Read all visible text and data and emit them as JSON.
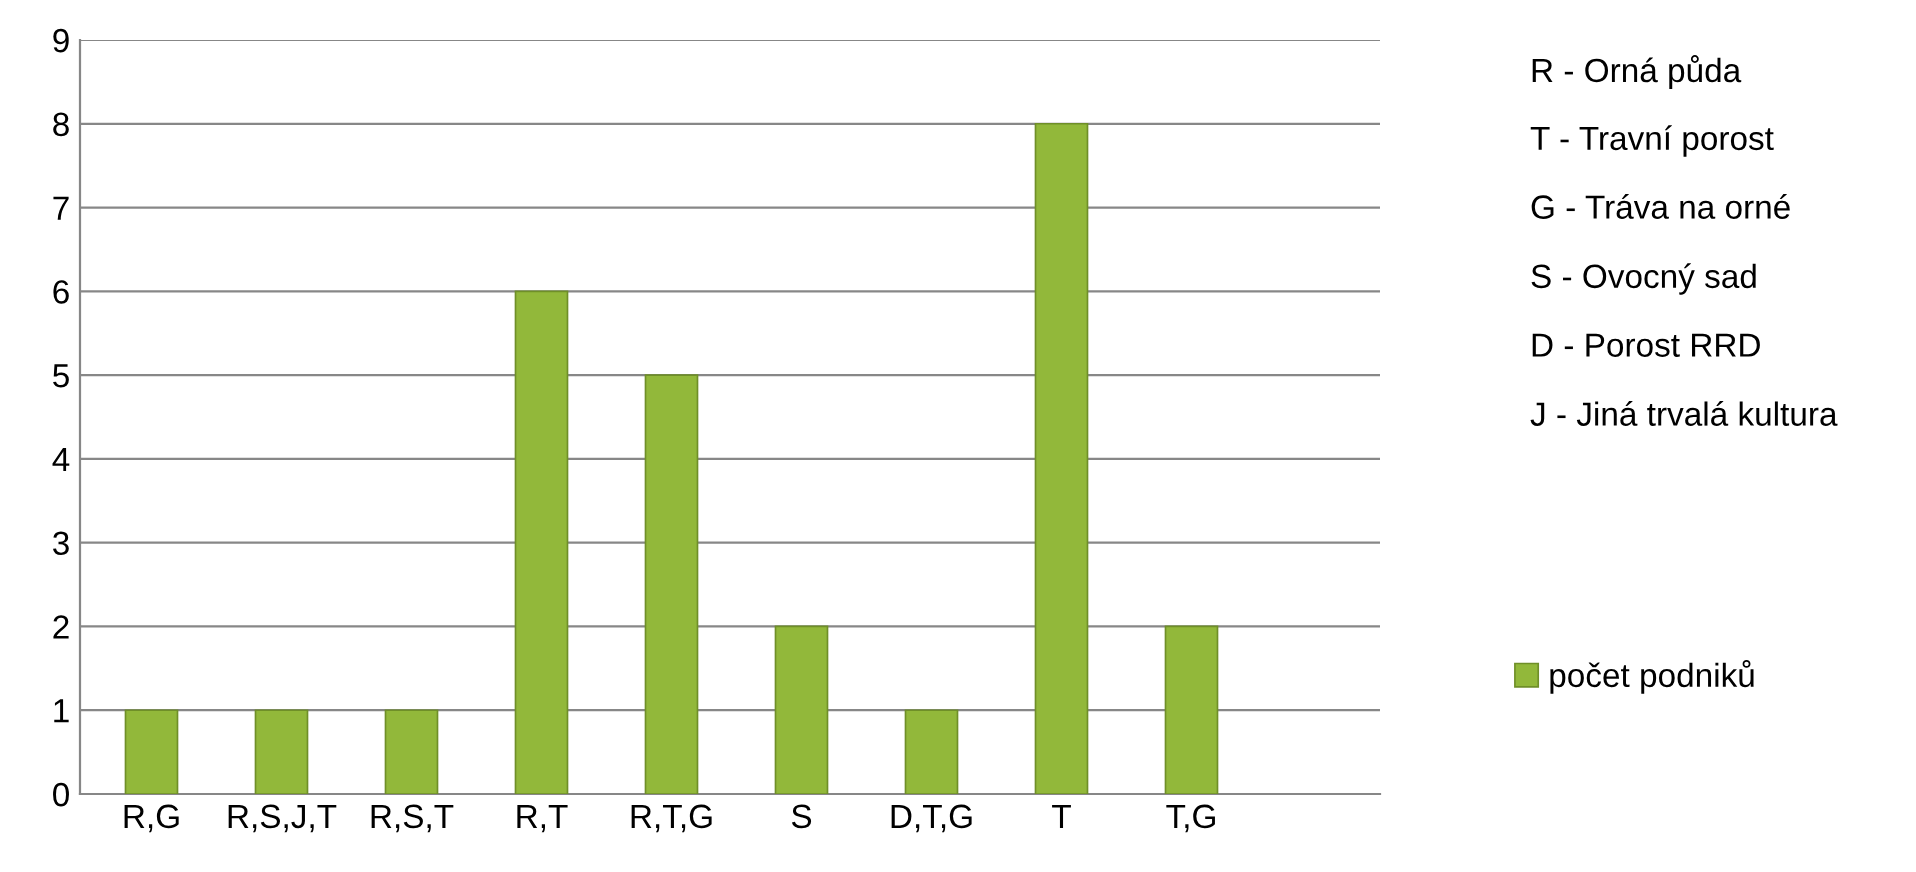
{
  "chart_data": {
    "type": "bar",
    "categories": [
      "R,G",
      "R,S,J,T",
      "R,S,T",
      "R,T",
      "R,T,G",
      "S",
      "D,T,G",
      "T",
      "T,G"
    ],
    "series": [
      {
        "name": "počet podniků",
        "color": "#92b83a",
        "values": [
          1,
          1,
          1,
          6,
          5,
          2,
          1,
          8,
          2
        ]
      }
    ],
    "ylim": [
      0,
      9
    ],
    "yticks": [
      0,
      1,
      2,
      3,
      4,
      5,
      6,
      7,
      8,
      9
    ],
    "grid": "y",
    "legend": "right",
    "annotations": [
      "R - Orná půda",
      "T - Travní porost",
      "G - Tráva na orné",
      "S - Ovocný sad",
      "D - Porost RRD",
      "J - Jiná trvalá kultura"
    ]
  }
}
